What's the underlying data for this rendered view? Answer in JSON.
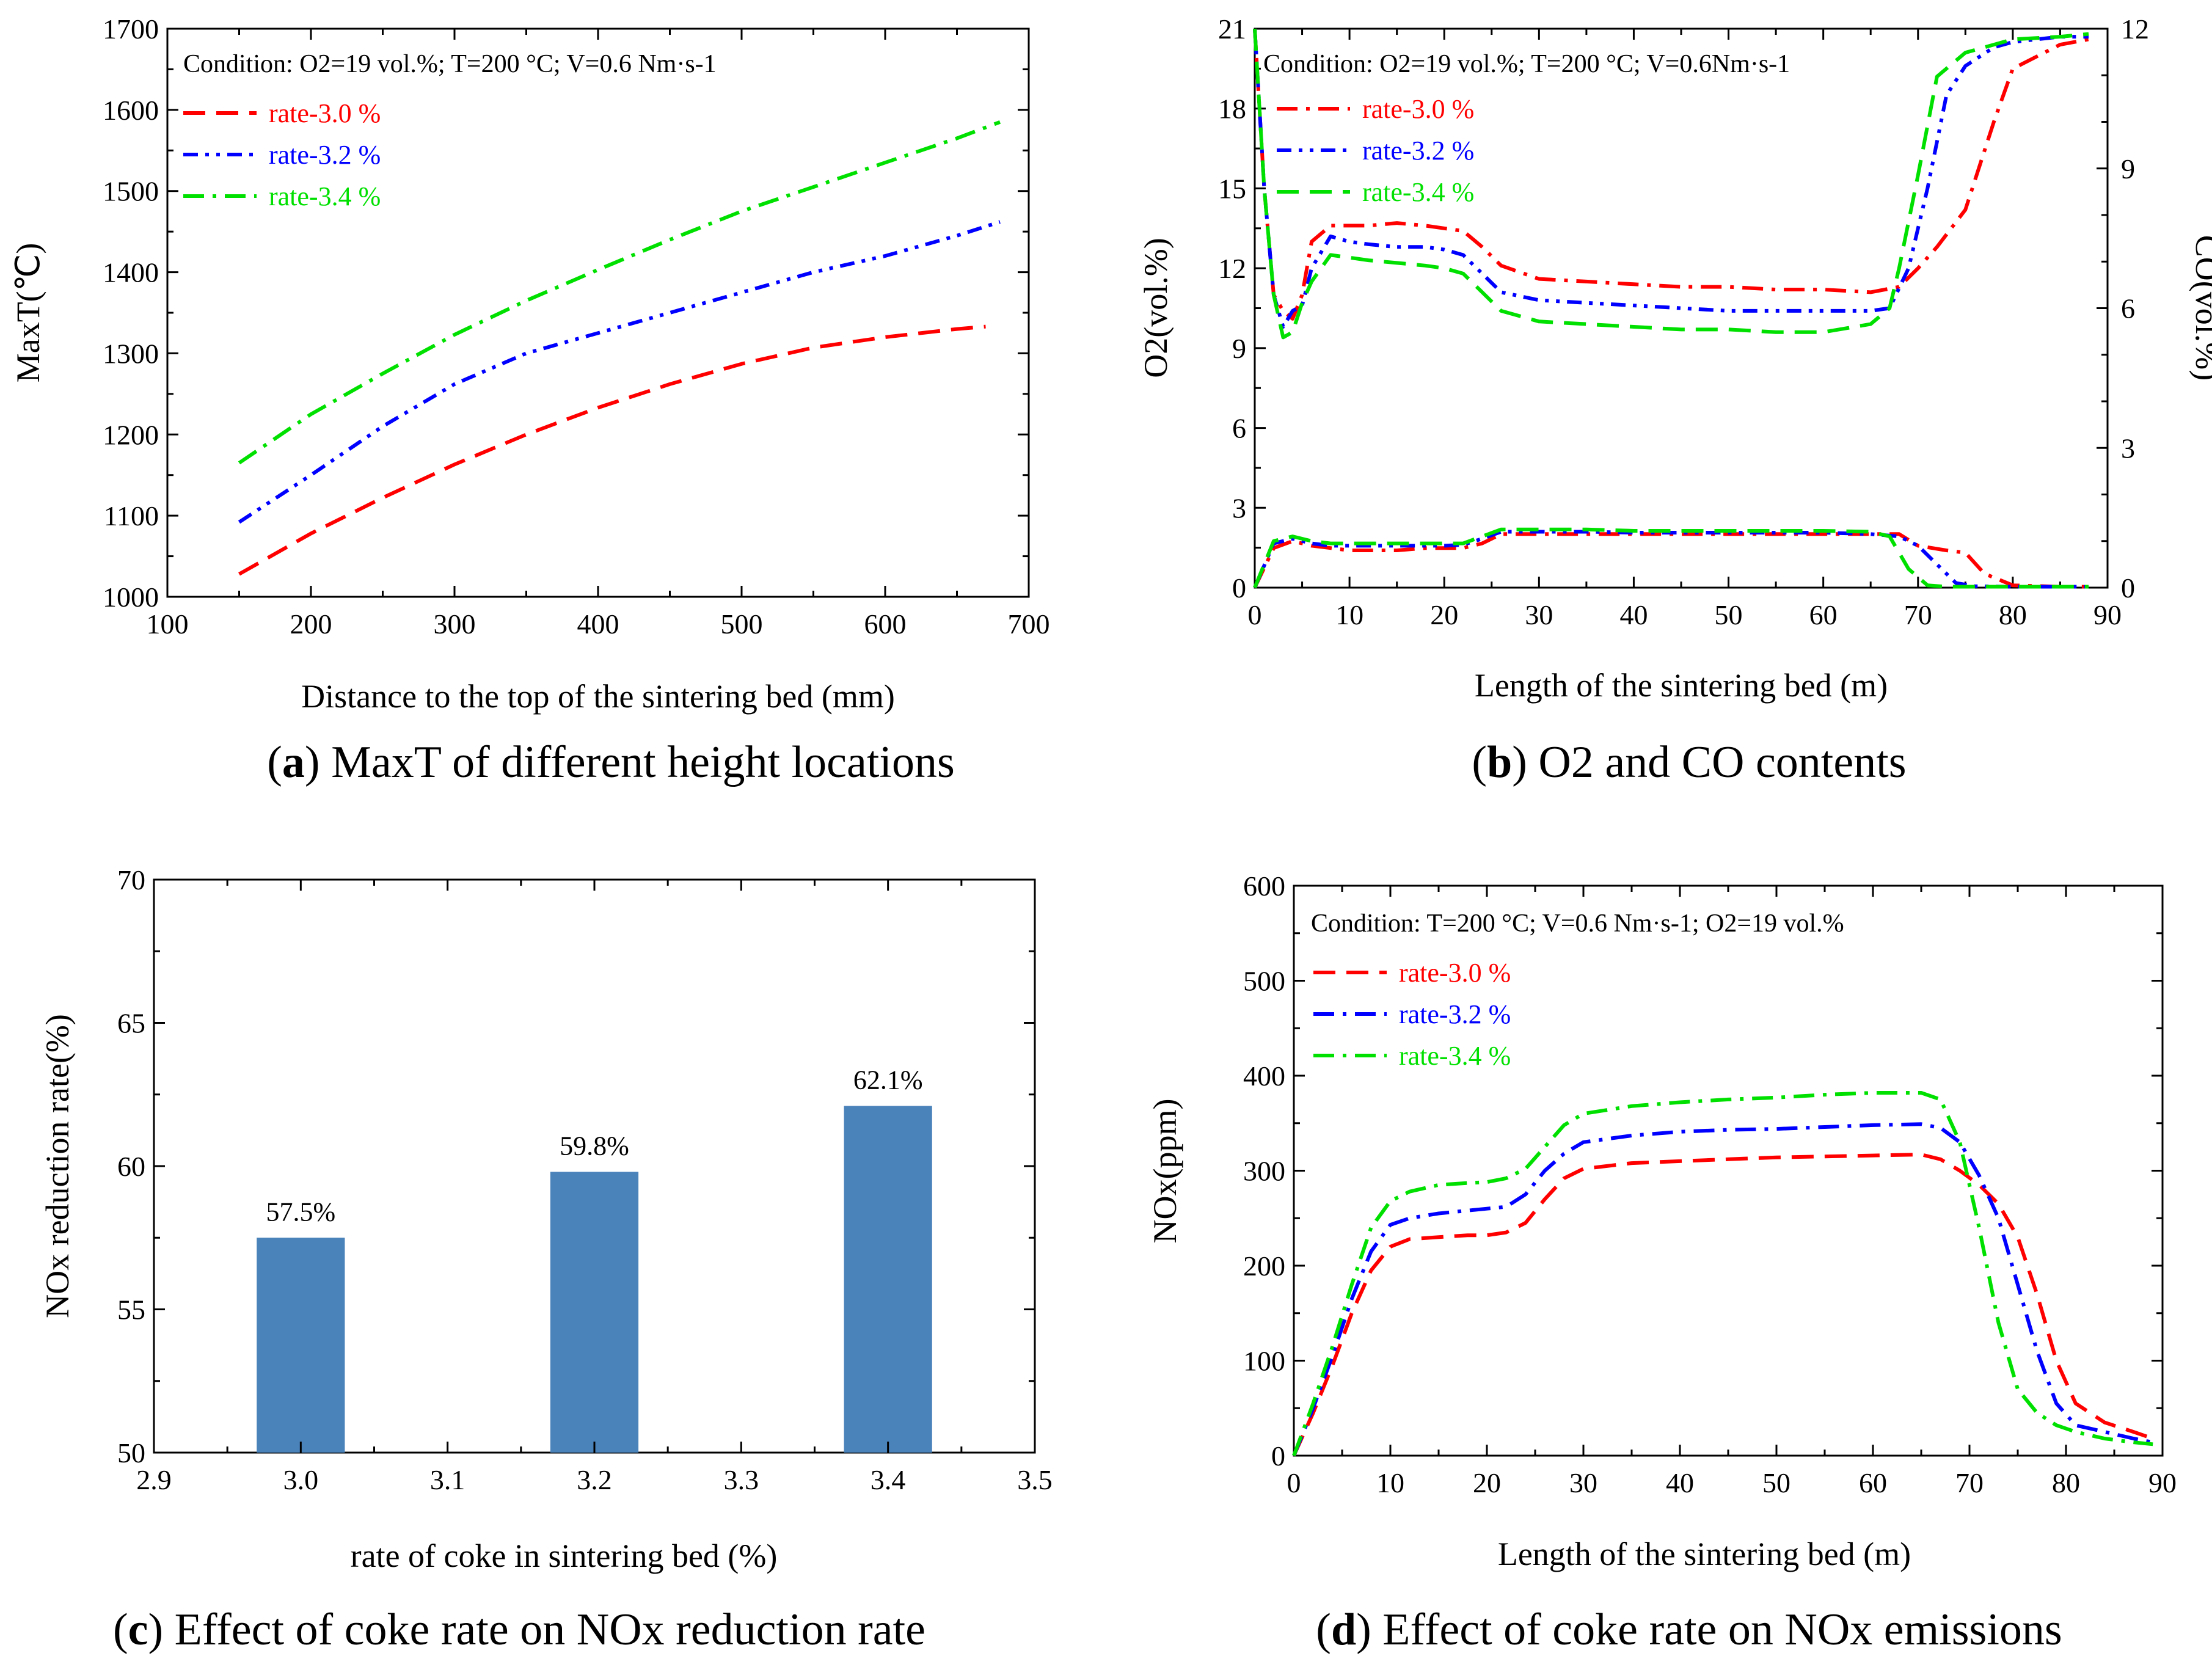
{
  "colors": {
    "r30": "#ff0000",
    "r32": "#0000ff",
    "r34": "#00e000",
    "bar": "#4a82ba"
  },
  "panels": {
    "a": {
      "caption_letter": "a",
      "caption_text": " MaxT of different height locations",
      "condition": "Condition: O2=19 vol.%; T=200 °C; V=0.6 Nm·s-1"
    },
    "b": {
      "caption_letter": "b",
      "caption_text": " O2 and CO contents",
      "condition": "Condition: O2=19 vol.%;  T=200 °C; V=0.6Nm·s-1"
    },
    "c": {
      "caption_letter": "c",
      "caption_text": " Effect of coke rate on NOx reduction rate"
    },
    "d": {
      "caption_letter": "d",
      "caption_text": " Effect of coke rate on NOx emissions",
      "condition": "Condition: T=200 °C; V=0.6 Nm·s-1; O2=19 vol.%"
    }
  },
  "chart_data": [
    {
      "id": "a",
      "type": "line",
      "title": "MaxT of different height locations",
      "xlabel": "Distance to the top of the sintering bed (mm)",
      "ylabel": "MaxT(℃)",
      "xlim": [
        100,
        700
      ],
      "ylim": [
        1000,
        1700
      ],
      "xticks": [
        100,
        200,
        300,
        400,
        500,
        600,
        700
      ],
      "yticks": [
        1000,
        1100,
        1200,
        1300,
        1400,
        1500,
        1600,
        1700
      ],
      "x": [
        150,
        200,
        300,
        400,
        500,
        600,
        670,
        680
      ],
      "series": [
        {
          "name": "rate-3.0 %",
          "color": "#ff0000",
          "dash": "dash",
          "x": [
            150,
            200,
            250,
            300,
            350,
            400,
            450,
            500,
            550,
            600,
            650,
            670
          ],
          "values": [
            1028,
            1078,
            1122,
            1163,
            1200,
            1233,
            1262,
            1287,
            1307,
            1320,
            1330,
            1333
          ]
        },
        {
          "name": "rate-3.2 %",
          "color": "#0000ff",
          "dash": "dashdotdot",
          "x": [
            150,
            200,
            250,
            300,
            350,
            400,
            450,
            500,
            550,
            600,
            650,
            680
          ],
          "values": [
            1092,
            1150,
            1210,
            1262,
            1300,
            1325,
            1350,
            1375,
            1400,
            1420,
            1445,
            1462
          ]
        },
        {
          "name": "rate-3.4 %",
          "color": "#00e000",
          "dash": "dashdot",
          "x": [
            150,
            200,
            250,
            300,
            350,
            400,
            450,
            500,
            550,
            600,
            650,
            680
          ],
          "values": [
            1165,
            1225,
            1275,
            1323,
            1365,
            1403,
            1440,
            1475,
            1505,
            1535,
            1565,
            1585
          ]
        }
      ]
    },
    {
      "id": "b",
      "type": "line",
      "title": "O2 and CO contents",
      "xlabel": "Length of the sintering bed (m)",
      "ylabel": "O2(vol.%)",
      "ylabel2": "CO(vol.%)",
      "xlim": [
        0,
        90
      ],
      "ylim": [
        0,
        21
      ],
      "y2lim": [
        0,
        12
      ],
      "xticks": [
        0,
        10,
        20,
        30,
        40,
        50,
        60,
        70,
        80,
        90
      ],
      "yticks": [
        0,
        3,
        6,
        9,
        12,
        15,
        18,
        21
      ],
      "y2ticks": [
        0,
        3,
        6,
        9,
        12
      ],
      "series": [
        {
          "name": "rate-3.0 %",
          "color": "#ff0000",
          "dash": "dashdot",
          "axis": "O2",
          "x": [
            0,
            1,
            2,
            3,
            4,
            5,
            6,
            8,
            10,
            12,
            15,
            18,
            20,
            22,
            24,
            26,
            30,
            35,
            40,
            45,
            50,
            55,
            60,
            65,
            68,
            70,
            72,
            75,
            78,
            80,
            85,
            88
          ],
          "values": [
            21,
            15,
            11,
            10.4,
            10.1,
            11,
            13.0,
            13.6,
            13.6,
            13.6,
            13.7,
            13.6,
            13.5,
            13.4,
            12.8,
            12.1,
            11.6,
            11.5,
            11.4,
            11.3,
            11.3,
            11.2,
            11.2,
            11.1,
            11.3,
            12.0,
            12.8,
            14.2,
            17.5,
            19.5,
            20.4,
            20.6
          ]
        },
        {
          "name": "rate-3.2 %",
          "color": "#0000ff",
          "dash": "dashdotdot",
          "axis": "O2",
          "x": [
            0,
            1,
            2,
            3,
            4,
            5,
            6,
            8,
            10,
            12,
            15,
            18,
            20,
            22,
            24,
            26,
            30,
            35,
            40,
            45,
            50,
            55,
            60,
            65,
            67,
            69,
            71,
            73,
            75,
            78,
            80,
            85,
            88
          ],
          "values": [
            21,
            15,
            11,
            9.8,
            10.4,
            10.6,
            12.0,
            13.2,
            13.0,
            12.9,
            12.8,
            12.8,
            12.7,
            12.5,
            11.8,
            11.1,
            10.8,
            10.7,
            10.6,
            10.5,
            10.4,
            10.4,
            10.4,
            10.4,
            10.5,
            12.0,
            15.0,
            18.5,
            19.6,
            20.3,
            20.5,
            20.7,
            20.7
          ]
        },
        {
          "name": "rate-3.4 %",
          "color": "#00e000",
          "dash": "dash",
          "axis": "O2",
          "x": [
            0,
            1,
            2,
            3,
            4,
            5,
            6,
            8,
            10,
            12,
            15,
            18,
            20,
            22,
            24,
            26,
            30,
            35,
            40,
            45,
            50,
            55,
            60,
            65,
            67,
            68,
            70,
            72,
            75,
            78,
            80,
            85,
            88
          ],
          "values": [
            21,
            15,
            11,
            9.4,
            9.6,
            10.7,
            11.5,
            12.5,
            12.4,
            12.3,
            12.2,
            12.1,
            12.0,
            11.8,
            11.1,
            10.4,
            10.0,
            9.9,
            9.8,
            9.7,
            9.7,
            9.6,
            9.6,
            9.9,
            10.5,
            12.0,
            15.5,
            19.2,
            20.1,
            20.4,
            20.6,
            20.7,
            20.8
          ]
        },
        {
          "name": "CO rate-3.0 %",
          "color": "#ff0000",
          "dash": "dashdot",
          "axis": "CO",
          "x": [
            0,
            2,
            4,
            6,
            8,
            10,
            12,
            15,
            18,
            20,
            22,
            24,
            26,
            30,
            35,
            40,
            45,
            50,
            55,
            60,
            65,
            68,
            70,
            73,
            75,
            77,
            80,
            85,
            88
          ],
          "values": [
            0,
            0.85,
            1.0,
            0.9,
            0.85,
            0.8,
            0.8,
            0.8,
            0.85,
            0.85,
            0.85,
            0.95,
            1.15,
            1.15,
            1.15,
            1.15,
            1.15,
            1.15,
            1.15,
            1.15,
            1.15,
            1.15,
            0.9,
            0.8,
            0.75,
            0.3,
            0.05,
            0.02,
            0.02
          ]
        },
        {
          "name": "CO rate-3.2 %",
          "color": "#0000ff",
          "dash": "dashdotdot",
          "axis": "CO",
          "x": [
            0,
            2,
            4,
            6,
            8,
            10,
            12,
            15,
            18,
            20,
            22,
            24,
            26,
            30,
            35,
            40,
            45,
            50,
            55,
            60,
            65,
            68,
            70,
            72,
            74,
            76,
            80,
            85,
            88
          ],
          "values": [
            0,
            0.95,
            1.05,
            0.95,
            0.9,
            0.9,
            0.9,
            0.9,
            0.9,
            0.9,
            0.92,
            1.05,
            1.2,
            1.2,
            1.2,
            1.18,
            1.18,
            1.18,
            1.18,
            1.18,
            1.15,
            1.1,
            0.9,
            0.5,
            0.1,
            0.03,
            0.02,
            0.02,
            0.02
          ]
        },
        {
          "name": "CO rate-3.4 %",
          "color": "#00e000",
          "dash": "dash",
          "axis": "CO",
          "x": [
            0,
            2,
            4,
            6,
            8,
            10,
            12,
            15,
            18,
            20,
            22,
            24,
            26,
            30,
            35,
            40,
            45,
            50,
            55,
            60,
            65,
            67,
            69,
            71,
            73,
            76,
            80,
            85,
            88
          ],
          "values": [
            0,
            1.0,
            1.1,
            1.0,
            0.95,
            0.95,
            0.95,
            0.95,
            0.95,
            0.95,
            0.95,
            1.1,
            1.25,
            1.25,
            1.25,
            1.22,
            1.22,
            1.22,
            1.22,
            1.22,
            1.2,
            1.1,
            0.4,
            0.05,
            0.02,
            0.02,
            0.02,
            0.02,
            0.02
          ]
        }
      ],
      "legend": [
        "rate-3.0 %",
        "rate-3.2 %",
        "rate-3.4 %"
      ]
    },
    {
      "id": "c",
      "type": "bar",
      "title": "Effect of coke rate on NOx reduction rate",
      "xlabel": "rate of coke in sintering bed (%)",
      "ylabel": "NOx reduction rate(%)",
      "xlim": [
        2.9,
        3.5
      ],
      "ylim": [
        50,
        70
      ],
      "xticks": [
        "2.9",
        "3.0",
        "3.1",
        "3.2",
        "3.3",
        "3.4",
        "3.5"
      ],
      "yticks": [
        50,
        55,
        60,
        65,
        70
      ],
      "categories": [
        3.0,
        3.2,
        3.4
      ],
      "values": [
        57.5,
        59.8,
        62.1
      ],
      "labels": [
        "57.5%",
        "59.8%",
        "62.1%"
      ]
    },
    {
      "id": "d",
      "type": "line",
      "title": "Effect of coke rate on NOx emissions",
      "xlabel": "Length of the sintering bed (m)",
      "ylabel": "NOx(ppm)",
      "xlim": [
        0,
        90
      ],
      "ylim": [
        0,
        600
      ],
      "xticks": [
        0,
        10,
        20,
        30,
        40,
        50,
        60,
        70,
        80,
        90
      ],
      "yticks": [
        0,
        100,
        200,
        300,
        400,
        500,
        600
      ],
      "series": [
        {
          "name": "rate-3.0 %",
          "color": "#ff0000",
          "dash": "dash",
          "x": [
            0,
            2,
            4,
            6,
            8,
            10,
            12,
            15,
            18,
            20,
            22,
            24,
            26,
            28,
            30,
            35,
            40,
            45,
            50,
            55,
            60,
            65,
            67,
            69,
            71,
            73,
            75,
            77,
            79,
            81,
            84,
            87,
            89
          ],
          "values": [
            0,
            45,
            95,
            150,
            195,
            220,
            228,
            230,
            232,
            232,
            235,
            245,
            270,
            292,
            302,
            308,
            310,
            312,
            314,
            315,
            316,
            317,
            312,
            300,
            285,
            265,
            230,
            170,
            100,
            55,
            35,
            25,
            18
          ]
        },
        {
          "name": "rate-3.2 %",
          "color": "#0000ff",
          "dash": "dashdot",
          "x": [
            0,
            2,
            4,
            6,
            8,
            10,
            12,
            15,
            18,
            20,
            22,
            24,
            26,
            28,
            30,
            35,
            40,
            45,
            50,
            55,
            60,
            65,
            67,
            69,
            71,
            73,
            75,
            77,
            79,
            81,
            84,
            87,
            89
          ],
          "values": [
            0,
            50,
            105,
            165,
            215,
            243,
            250,
            255,
            258,
            260,
            262,
            275,
            300,
            318,
            330,
            337,
            341,
            343,
            344,
            346,
            348,
            349,
            345,
            330,
            295,
            250,
            180,
            110,
            55,
            32,
            25,
            18,
            14
          ]
        },
        {
          "name": "rate-3.4 %",
          "color": "#00e000",
          "dash": "dashdot",
          "x": [
            0,
            2,
            4,
            6,
            8,
            10,
            12,
            15,
            18,
            20,
            22,
            24,
            26,
            28,
            30,
            35,
            40,
            45,
            50,
            55,
            60,
            65,
            67,
            69,
            71,
            73,
            75,
            77,
            79,
            81,
            84,
            87,
            89
          ],
          "values": [
            0,
            55,
            115,
            180,
            240,
            268,
            278,
            285,
            287,
            288,
            292,
            302,
            325,
            348,
            360,
            368,
            372,
            375,
            377,
            380,
            382,
            382,
            375,
            330,
            240,
            140,
            70,
            45,
            32,
            25,
            18,
            14,
            12
          ]
        }
      ]
    }
  ]
}
